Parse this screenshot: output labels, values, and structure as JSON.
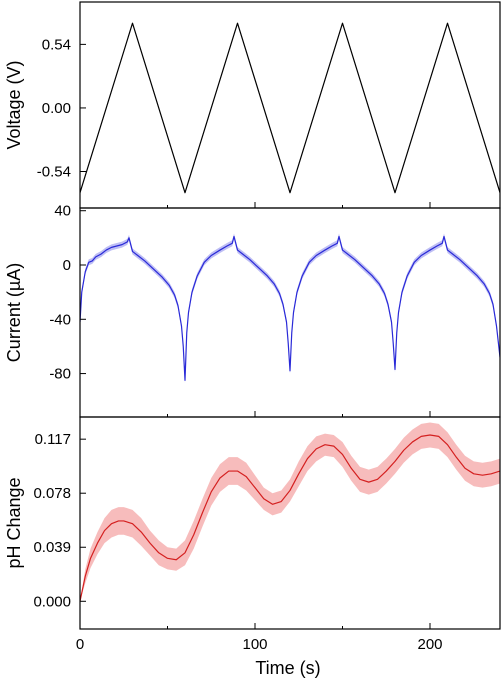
{
  "chart_data": [
    {
      "type": "line",
      "ylabel": "Voltage (V)",
      "yticks": [
        "0.54",
        "0.00",
        "-0.54"
      ],
      "ytick_values": [
        0.54,
        0.0,
        -0.54
      ],
      "ylim": [
        -0.85,
        0.9
      ],
      "xlim": [
        0,
        240
      ],
      "series": [
        {
          "color": "#000000",
          "x": [
            0,
            30,
            60,
            90,
            120,
            150,
            180,
            210,
            240
          ],
          "y": [
            -0.72,
            0.72,
            -0.72,
            0.72,
            -0.72,
            0.72,
            -0.72,
            0.72,
            -0.72
          ]
        }
      ]
    },
    {
      "type": "line",
      "ylabel": "Current (µA)",
      "yticks": [
        "40",
        "0",
        "-40",
        "-80"
      ],
      "ytick_values": [
        40,
        0,
        -40,
        -80
      ],
      "ylim": [
        -112,
        42
      ],
      "xlim": [
        0,
        240
      ],
      "series": [
        {
          "color": "#2a2ad8",
          "band_color": "#a8a8f0",
          "x": [
            0,
            1,
            3,
            5,
            7,
            9,
            12,
            15,
            18,
            21,
            24,
            27,
            28,
            30,
            33,
            37,
            42,
            47,
            51,
            54,
            56,
            58,
            59,
            60,
            61,
            62,
            64,
            67,
            71,
            75,
            80,
            84,
            87,
            88,
            90,
            93,
            97,
            102,
            107,
            111,
            114,
            116,
            118,
            119,
            120,
            121,
            122,
            124,
            127,
            131,
            135,
            140,
            144,
            147,
            148,
            150,
            153,
            157,
            162,
            167,
            171,
            174,
            176,
            178,
            179,
            180,
            181,
            182,
            184,
            187,
            191,
            195,
            200,
            204,
            207,
            208,
            210,
            213,
            217,
            222,
            227,
            231,
            234,
            236,
            238,
            240
          ],
          "y": [
            -42,
            -20,
            -5,
            2,
            3,
            6,
            8,
            11,
            13,
            14,
            15,
            17,
            20,
            10,
            7,
            3,
            -3,
            -9,
            -15,
            -22,
            -30,
            -45,
            -60,
            -85,
            -50,
            -35,
            -20,
            -8,
            2,
            7,
            11,
            14,
            16,
            21,
            11,
            8,
            4,
            -2,
            -8,
            -14,
            -21,
            -29,
            -42,
            -58,
            -78,
            -50,
            -35,
            -20,
            -8,
            2,
            7,
            11,
            14,
            16,
            21,
            11,
            8,
            4,
            -2,
            -8,
            -14,
            -21,
            -29,
            -42,
            -58,
            -77,
            -50,
            -35,
            -20,
            -8,
            2,
            7,
            11,
            14,
            16,
            21,
            11,
            8,
            4,
            -2,
            -8,
            -14,
            -21,
            -29,
            -45,
            -68
          ],
          "band": 2.2
        }
      ]
    },
    {
      "type": "line",
      "ylabel": "pH Change",
      "xlabel": "Time (s)",
      "yticks": [
        "0.117",
        "0.078",
        "0.039",
        "0.000"
      ],
      "ytick_values": [
        0.117,
        0.078,
        0.039,
        0.0
      ],
      "xticks": [
        "0",
        "100",
        "200"
      ],
      "xtick_values": [
        0,
        100,
        200
      ],
      "ylim": [
        -0.02,
        0.133
      ],
      "xlim": [
        0,
        240
      ],
      "series": [
        {
          "color": "#d42020",
          "band_color": "#f4a6a6",
          "x": [
            0,
            3,
            6,
            10,
            14,
            18,
            22,
            25,
            30,
            35,
            40,
            45,
            50,
            55,
            60,
            65,
            70,
            75,
            80,
            85,
            90,
            95,
            100,
            105,
            110,
            115,
            120,
            125,
            130,
            135,
            140,
            145,
            150,
            155,
            160,
            165,
            170,
            175,
            180,
            185,
            190,
            195,
            200,
            205,
            210,
            215,
            220,
            225,
            230,
            235,
            240
          ],
          "y": [
            0.0,
            0.018,
            0.031,
            0.042,
            0.051,
            0.056,
            0.058,
            0.058,
            0.056,
            0.05,
            0.042,
            0.035,
            0.031,
            0.03,
            0.035,
            0.048,
            0.064,
            0.079,
            0.089,
            0.094,
            0.094,
            0.09,
            0.082,
            0.074,
            0.07,
            0.072,
            0.08,
            0.092,
            0.103,
            0.11,
            0.113,
            0.112,
            0.106,
            0.096,
            0.088,
            0.086,
            0.088,
            0.094,
            0.101,
            0.109,
            0.115,
            0.119,
            0.12,
            0.119,
            0.113,
            0.104,
            0.096,
            0.092,
            0.091,
            0.092,
            0.094
          ],
          "band": [
            0.0,
            0.005,
            0.007,
            0.008,
            0.009,
            0.01,
            0.01,
            0.01,
            0.01,
            0.01,
            0.009,
            0.009,
            0.008,
            0.008,
            0.009,
            0.01,
            0.01,
            0.01,
            0.01,
            0.01,
            0.01,
            0.01,
            0.009,
            0.008,
            0.008,
            0.008,
            0.008,
            0.009,
            0.009,
            0.009,
            0.008,
            0.008,
            0.009,
            0.009,
            0.009,
            0.009,
            0.009,
            0.009,
            0.009,
            0.009,
            0.009,
            0.009,
            0.009,
            0.009,
            0.009,
            0.009,
            0.009,
            0.009,
            0.009,
            0.009,
            0.009
          ]
        }
      ]
    }
  ]
}
